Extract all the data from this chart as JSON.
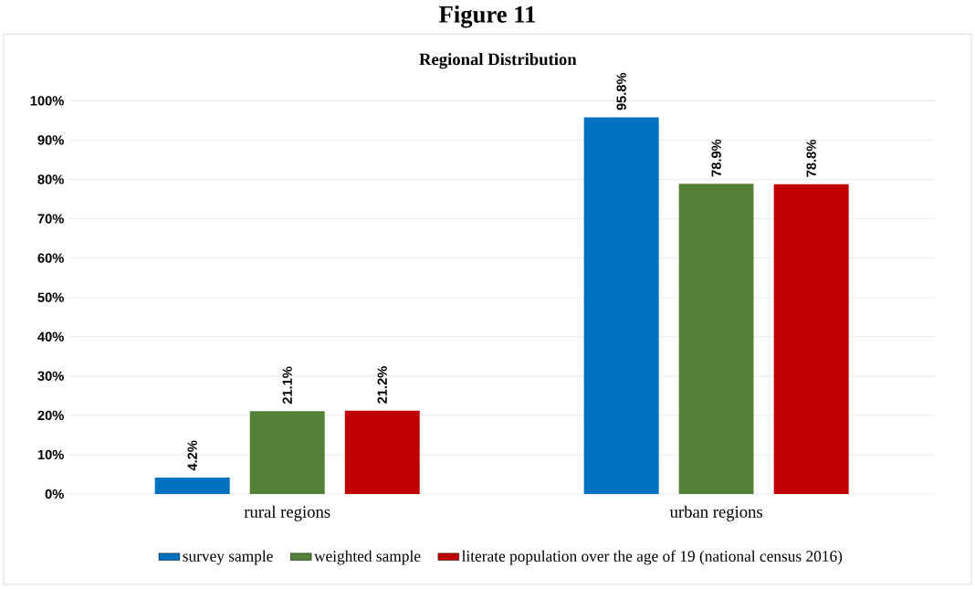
{
  "chart_data": {
    "type": "bar",
    "title": "Figure 11",
    "subtitle": "Regional Distribution",
    "categories": [
      "rural regions",
      "urban regions"
    ],
    "series": [
      {
        "name": "survey sample",
        "color": "#0070c0",
        "values": [
          4.2,
          95.8
        ],
        "value_labels": [
          "4.2%",
          "95.8%"
        ]
      },
      {
        "name": "weighted sample",
        "color": "#538135",
        "values": [
          21.1,
          78.9
        ],
        "value_labels": [
          "21.1%",
          "78.9%"
        ]
      },
      {
        "name": "literate population over the age of 19 (national census 2016)",
        "color": "#c00000",
        "values": [
          21.2,
          78.8
        ],
        "value_labels": [
          "21.2%",
          "78.8%"
        ]
      }
    ],
    "ylim": [
      0,
      100
    ],
    "yticks": [
      {
        "value": 0,
        "label": "0%"
      },
      {
        "value": 10,
        "label": "10%"
      },
      {
        "value": 20,
        "label": "20%"
      },
      {
        "value": 30,
        "label": "30%"
      },
      {
        "value": 40,
        "label": "40%"
      },
      {
        "value": 50,
        "label": "50%"
      },
      {
        "value": 60,
        "label": "60%"
      },
      {
        "value": 70,
        "label": "70%"
      },
      {
        "value": 80,
        "label": "80%"
      },
      {
        "value": 90,
        "label": "90%"
      },
      {
        "value": 100,
        "label": "100%"
      }
    ],
    "grid": "y",
    "legend": "bottom"
  }
}
